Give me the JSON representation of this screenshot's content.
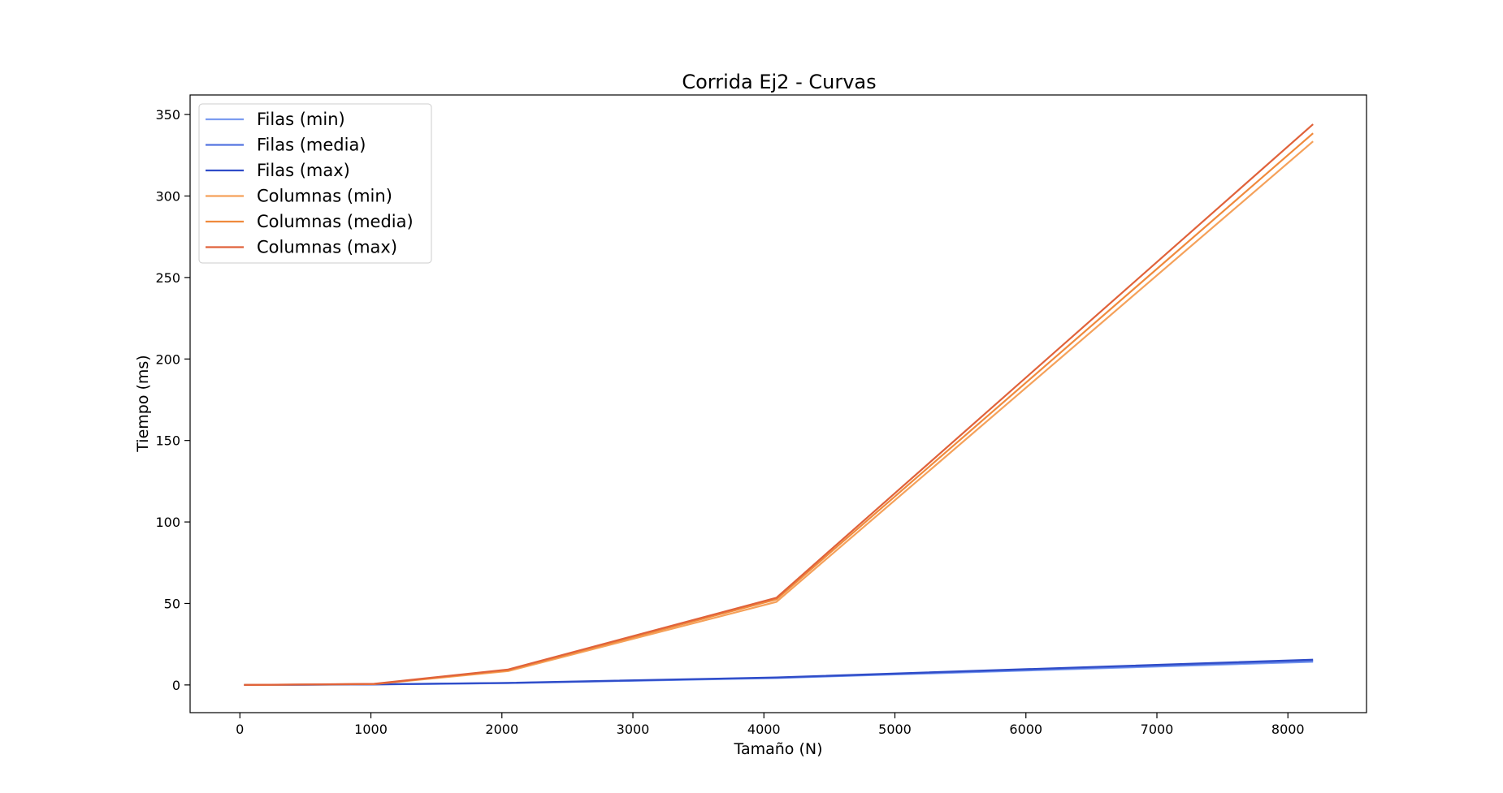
{
  "chart_data": {
    "type": "line",
    "title": "Corrida Ej2 - Curvas",
    "xlabel": "Tamaño (N)",
    "ylabel": "Tiempo (ms)",
    "xlim": [
      -380,
      8600
    ],
    "ylim": [
      -17,
      362
    ],
    "xticks": [
      0,
      1000,
      2000,
      3000,
      4000,
      5000,
      6000,
      7000,
      8000
    ],
    "yticks": [
      0,
      50,
      100,
      150,
      200,
      250,
      300,
      350
    ],
    "grid": false,
    "legend_position": "top-left",
    "x": [
      32,
      1024,
      2048,
      4096,
      8192
    ],
    "series": [
      {
        "name": "Filas (min)",
        "color": "#7b9cf0",
        "values": [
          0.0,
          0.3,
          1.1,
          4.2,
          14.2
        ]
      },
      {
        "name": "Filas (media)",
        "color": "#5474e0",
        "values": [
          0.0,
          0.3,
          1.2,
          4.4,
          14.8
        ]
      },
      {
        "name": "Filas (max)",
        "color": "#2f4cc8",
        "values": [
          0.0,
          0.4,
          1.3,
          4.6,
          15.5
        ]
      },
      {
        "name": "Columnas (min)",
        "color": "#f5a15a",
        "values": [
          0.0,
          0.5,
          8.5,
          51.0,
          333.5
        ]
      },
      {
        "name": "Columnas (media)",
        "color": "#f08a3c",
        "values": [
          0.0,
          0.6,
          9.0,
          52.5,
          338.5
        ]
      },
      {
        "name": "Columnas (max)",
        "color": "#e0623a",
        "values": [
          0.0,
          0.7,
          9.5,
          53.5,
          344.0
        ]
      }
    ]
  }
}
